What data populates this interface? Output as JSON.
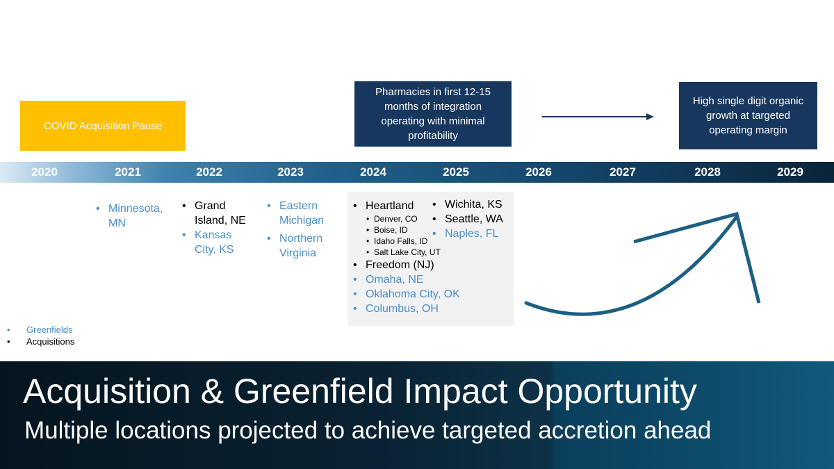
{
  "covid_box": {
    "text": "COVID Acquisition Pause"
  },
  "pharmacy_box": {
    "text": "Pharmacies in first 12-15 months of integration operating with minimal profitability"
  },
  "growth_box": {
    "text": "High single digit organic growth at targeted operating margin"
  },
  "timeline": {
    "years": [
      "2020",
      "2021",
      "2022",
      "2023",
      "2024",
      "2025",
      "2026",
      "2027",
      "2028",
      "2029"
    ]
  },
  "col_2021": [
    {
      "text": "Minnesota, MN",
      "type": "greenfield"
    }
  ],
  "col_2022": [
    {
      "text": "Grand Island, NE",
      "type": "acquisition"
    },
    {
      "text": "Kansas City, KS",
      "type": "greenfield"
    }
  ],
  "col_2023": [
    {
      "text": "Eastern Michigan",
      "type": "greenfield"
    },
    {
      "text": "Northern Virginia",
      "type": "greenfield"
    }
  ],
  "col_2024": {
    "heartland": "Heartland",
    "heartland_subs": [
      "Denver, CO",
      "Boise, ID",
      "Idaho Falls, ID",
      "Salt Lake City, UT"
    ],
    "freedom": "Freedom (NJ)",
    "greenfields": [
      "Omaha, NE",
      "Oklahoma City, OK",
      "Columbus, OH"
    ]
  },
  "col_2025": {
    "acquisitions": [
      "Wichita, KS",
      "Seattle, WA"
    ],
    "greenfields": [
      "Naples, FL"
    ]
  },
  "legend": {
    "greenfields": "Greenfields",
    "acquisitions": "Acquisitions"
  },
  "colors": {
    "greenfield": "#4a8fc9",
    "acquisition": "#000000",
    "covid": "#ffc000",
    "navy": "#17375e",
    "arrow": "#1b5f82"
  },
  "footer": {
    "title": "Acquisition & Greenfield Impact Opportunity",
    "subtitle": "Multiple locations projected to achieve targeted accretion ahead"
  }
}
